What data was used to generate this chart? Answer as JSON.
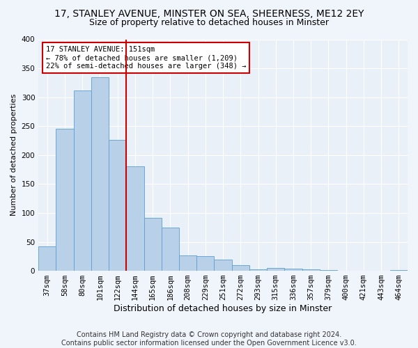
{
  "title1": "17, STANLEY AVENUE, MINSTER ON SEA, SHEERNESS, ME12 2EY",
  "title2": "Size of property relative to detached houses in Minster",
  "xlabel": "Distribution of detached houses by size in Minster",
  "ylabel": "Number of detached properties",
  "categories": [
    "37sqm",
    "58sqm",
    "80sqm",
    "101sqm",
    "122sqm",
    "144sqm",
    "165sqm",
    "186sqm",
    "208sqm",
    "229sqm",
    "251sqm",
    "272sqm",
    "293sqm",
    "315sqm",
    "336sqm",
    "357sqm",
    "379sqm",
    "400sqm",
    "421sqm",
    "443sqm",
    "464sqm"
  ],
  "values": [
    42,
    246,
    312,
    335,
    226,
    181,
    92,
    75,
    26,
    25,
    19,
    10,
    3,
    5,
    4,
    2,
    1,
    0,
    0,
    0,
    1
  ],
  "bar_color": "#b8d0e8",
  "bar_edge_color": "#5a9fd4",
  "vline_pos": 4.5,
  "vline_color": "#cc0000",
  "annotation_text": "17 STANLEY AVENUE: 151sqm\n← 78% of detached houses are smaller (1,209)\n22% of semi-detached houses are larger (348) →",
  "annotation_box_color": "#ffffff",
  "annotation_box_edge_color": "#cc0000",
  "footer_text": "Contains HM Land Registry data © Crown copyright and database right 2024.\nContains public sector information licensed under the Open Government Licence v3.0.",
  "ylim": [
    0,
    400
  ],
  "background_color": "#f0f4fb",
  "plot_bg_color": "#eaf0f8",
  "grid_color": "#ffffff",
  "title1_fontsize": 10,
  "title2_fontsize": 9,
  "xlabel_fontsize": 9,
  "ylabel_fontsize": 8,
  "tick_fontsize": 7.5,
  "footer_fontsize": 7
}
